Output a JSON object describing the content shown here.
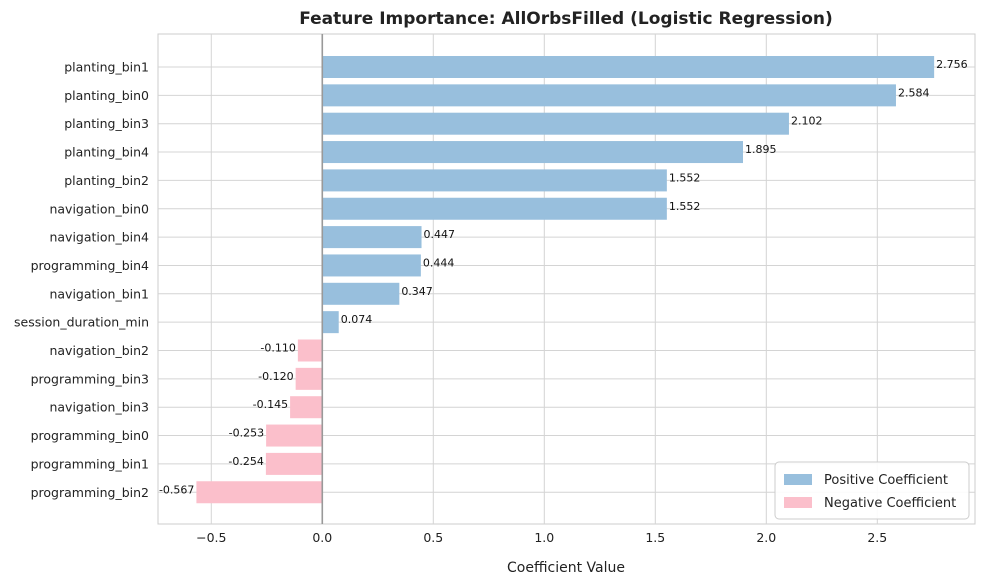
{
  "chart_data": {
    "type": "bar",
    "orientation": "horizontal",
    "title": "Feature Importance: AllOrbsFilled (Logistic Regression)",
    "xlabel": "Coefficient Value",
    "ylabel": "",
    "xlim": [
      -0.74,
      2.94
    ],
    "xticks": [
      -0.5,
      0.0,
      0.5,
      1.0,
      1.5,
      2.0,
      2.5
    ],
    "xtick_labels": [
      "−0.5",
      "0.0",
      "0.5",
      "1.0",
      "1.5",
      "2.0",
      "2.5"
    ],
    "grid": true,
    "zero_line": true,
    "legend_position": "lower-right",
    "colors": {
      "positive": "#98bfdd",
      "negative": "#fbbfcb"
    },
    "legend": [
      {
        "label": "Positive Coefficient",
        "color": "#98bfdd"
      },
      {
        "label": "Negative Coefficient",
        "color": "#fbbfcb"
      }
    ],
    "bars": [
      {
        "feature": "planting_bin1",
        "value": 2.756,
        "label": "2.756"
      },
      {
        "feature": "planting_bin0",
        "value": 2.584,
        "label": "2.584"
      },
      {
        "feature": "planting_bin3",
        "value": 2.102,
        "label": "2.102"
      },
      {
        "feature": "planting_bin4",
        "value": 1.895,
        "label": "1.895"
      },
      {
        "feature": "planting_bin2",
        "value": 1.552,
        "label": "1.552"
      },
      {
        "feature": "navigation_bin0",
        "value": 1.552,
        "label": "1.552"
      },
      {
        "feature": "navigation_bin4",
        "value": 0.447,
        "label": "0.447"
      },
      {
        "feature": "programming_bin4",
        "value": 0.444,
        "label": "0.444"
      },
      {
        "feature": "navigation_bin1",
        "value": 0.347,
        "label": "0.347"
      },
      {
        "feature": "session_duration_min",
        "value": 0.074,
        "label": "0.074"
      },
      {
        "feature": "navigation_bin2",
        "value": -0.11,
        "label": "-0.110"
      },
      {
        "feature": "programming_bin3",
        "value": -0.12,
        "label": "-0.120"
      },
      {
        "feature": "navigation_bin3",
        "value": -0.145,
        "label": "-0.145"
      },
      {
        "feature": "programming_bin0",
        "value": -0.253,
        "label": "-0.253"
      },
      {
        "feature": "programming_bin1",
        "value": -0.254,
        "label": "-0.254"
      },
      {
        "feature": "programming_bin2",
        "value": -0.567,
        "label": "-0.567"
      }
    ]
  }
}
